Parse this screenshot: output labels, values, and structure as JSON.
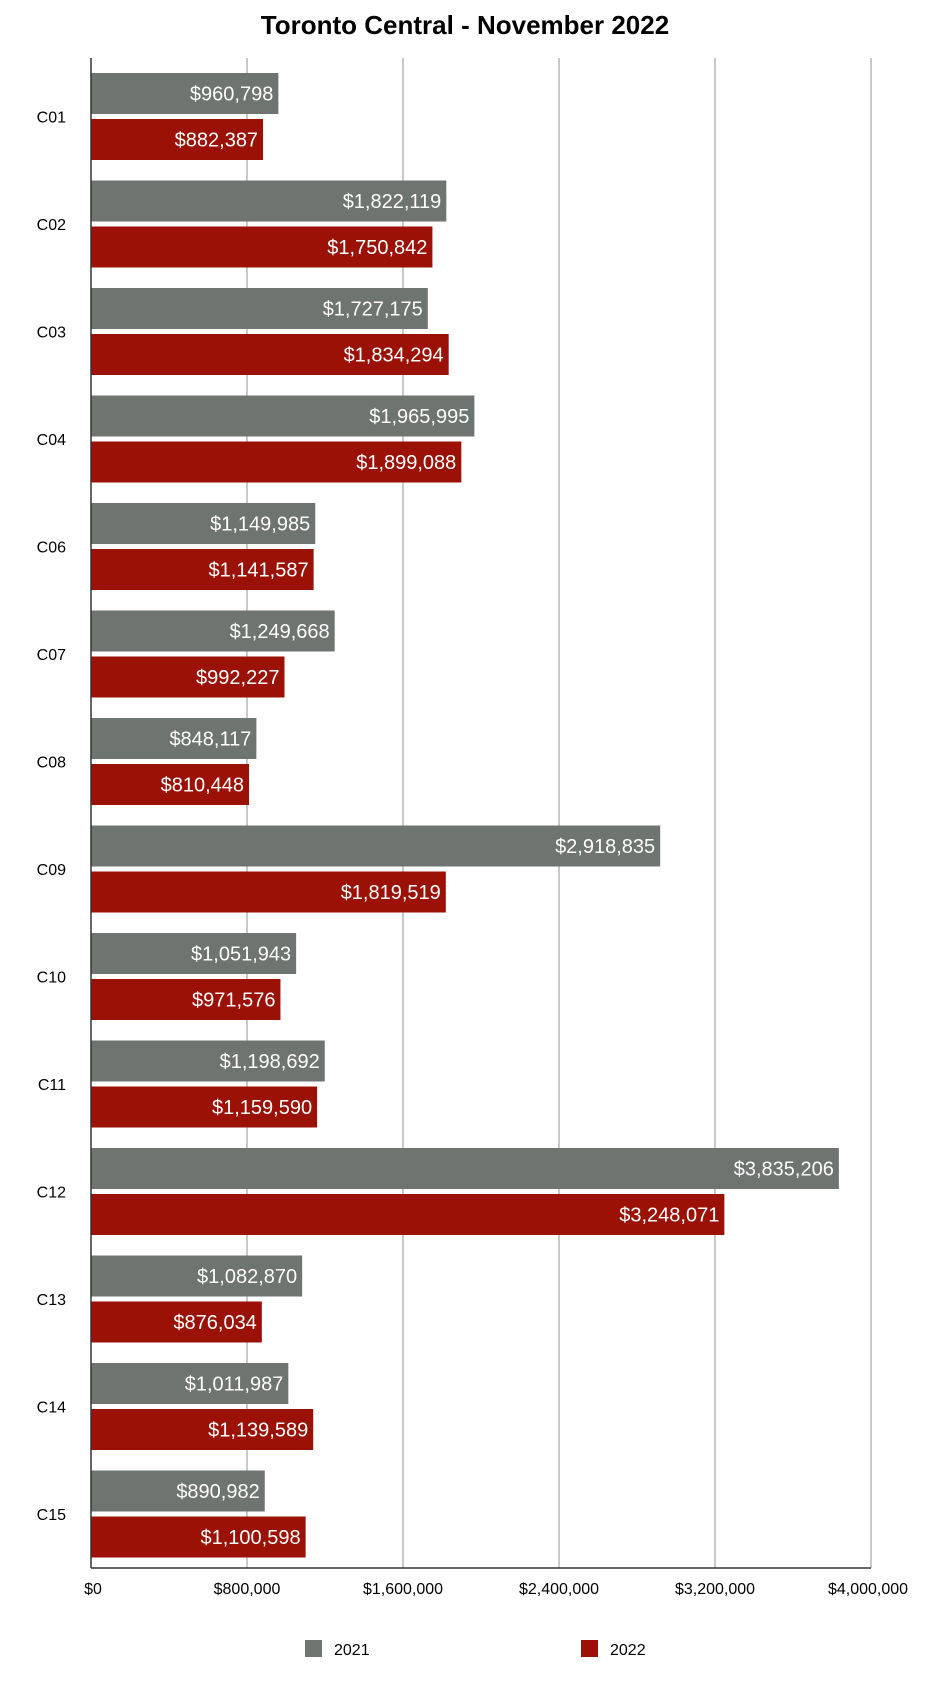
{
  "chart_data": {
    "type": "bar",
    "orientation": "horizontal",
    "title": "Toronto Central - November 2022",
    "xlabel": "",
    "ylabel": "",
    "categories": [
      "C01",
      "C02",
      "C03",
      "C04",
      "C06",
      "C07",
      "C08",
      "C09",
      "C10",
      "C11",
      "C12",
      "C13",
      "C14",
      "C15"
    ],
    "series": [
      {
        "name": "2021",
        "color": "#6e7470",
        "values": [
          960798,
          1822119,
          1727175,
          1965995,
          1149985,
          1249668,
          848117,
          2918835,
          1051943,
          1198692,
          3835206,
          1082870,
          1011987,
          890982
        ],
        "labels": [
          "$960,798",
          "$1,822,119",
          "$1,727,175",
          "$1,965,995",
          "$1,149,985",
          "$1,249,668",
          "$848,117",
          "$2,918,835",
          "$1,051,943",
          "$1,198,692",
          "$3,835,206",
          "$1,082,870",
          "$1,011,987",
          "$890,982"
        ]
      },
      {
        "name": "2022",
        "color": "#9b1106",
        "values": [
          882387,
          1750842,
          1834294,
          1899088,
          1141587,
          992227,
          810448,
          1819519,
          971576,
          1159590,
          3248071,
          876034,
          1139589,
          1100598
        ],
        "labels": [
          "$882,387",
          "$1,750,842",
          "$1,834,294",
          "$1,899,088",
          "$1,141,587",
          "$992,227",
          "$810,448",
          "$1,819,519",
          "$971,576",
          "$1,159,590",
          "$3,248,071",
          "$876,034",
          "$1,139,589",
          "$1,100,598"
        ]
      }
    ],
    "xlim": [
      0,
      4000000
    ],
    "xticks": [
      0,
      800000,
      1600000,
      2400000,
      3200000,
      4000000
    ],
    "xtick_labels": [
      "$0",
      "$800,000",
      "$1,600,000",
      "$2,400,000",
      "$3,200,000",
      "$4,000,000"
    ],
    "grid": true,
    "legend_position": "bottom",
    "colors": {
      "grid": "#b7b7b7",
      "axis": "#333333",
      "bar_label": "#ffffff"
    }
  }
}
